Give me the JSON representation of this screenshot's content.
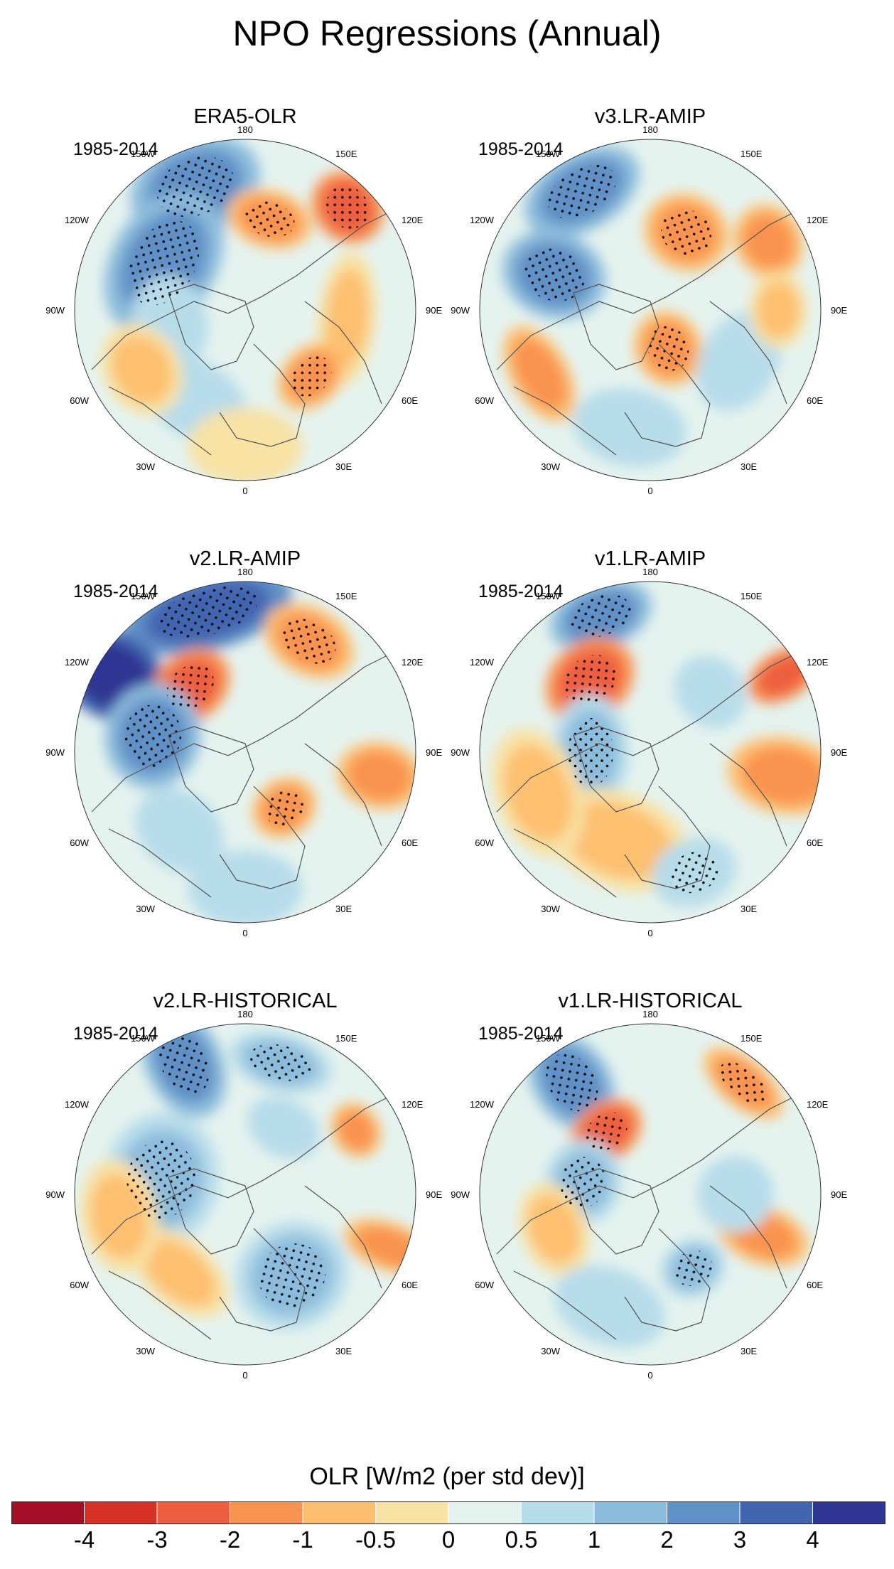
{
  "title": "NPO Regressions (Annual)",
  "panels": [
    {
      "title": "ERA5-OLR",
      "period": "1985-2014"
    },
    {
      "title": "v3.LR-AMIP",
      "period": "1985-2014"
    },
    {
      "title": "v2.LR-AMIP",
      "period": "1985-2014"
    },
    {
      "title": "v1.LR-AMIP",
      "period": "1985-2014"
    },
    {
      "title": "v2.LR-HISTORICAL",
      "period": "1985-2014"
    },
    {
      "title": "v1.LR-HISTORICAL",
      "period": "1985-2014"
    }
  ],
  "longitude_labels": {
    "top": "180",
    "bottom": "0",
    "left": [
      "150W",
      "120W",
      "90W",
      "60W",
      "30W"
    ],
    "right": [
      "150E",
      "120E",
      "90E",
      "60E",
      "30E"
    ]
  },
  "colorbar": {
    "title": "OLR [W/m2 (per std dev)]",
    "colors": [
      "#a50f25",
      "#d73027",
      "#ee5f3f",
      "#f99350",
      "#fdbf6f",
      "#f8e2a4",
      "#e5f3ef",
      "#b7dcea",
      "#8cbcdc",
      "#5f90c6",
      "#4265b0",
      "#2f3593"
    ],
    "labels": [
      "-4",
      "-3",
      "-2",
      "-1",
      "-0.5",
      "0",
      "0.5",
      "1",
      "2",
      "3",
      "4"
    ]
  }
}
